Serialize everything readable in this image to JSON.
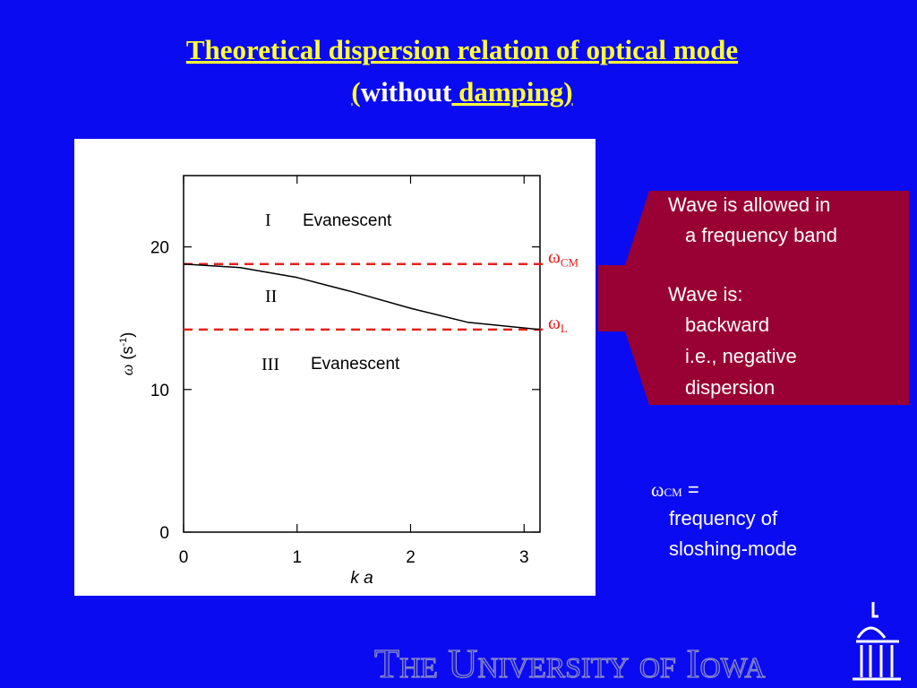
{
  "title": {
    "line1": "Theoretical dispersion relation of optical mode",
    "line2": [
      "(",
      "without",
      " damping)"
    ]
  },
  "chart_data": {
    "type": "line",
    "x": [
      0,
      0.5,
      1,
      1.5,
      2,
      2.5,
      3.14
    ],
    "series": [
      {
        "color": "#000000",
        "values": [
          18.8,
          18.55,
          17.85,
          16.82,
          15.7,
          14.72,
          14.2
        ]
      }
    ],
    "xlim": [
      0,
      3.14
    ],
    "xticks": [
      0,
      1,
      2,
      3
    ],
    "ylim": [
      0,
      25
    ],
    "yticks": [
      0,
      10,
      20
    ],
    "xlabel": "k a",
    "ylabel": [
      "ω",
      " (s",
      "-1",
      ")"
    ],
    "reference_lines": [
      {
        "value": 18.8,
        "symbol": "ω",
        "subscript": "CM",
        "color": "#e8201c"
      },
      {
        "value": 14.2,
        "symbol": "ω",
        "subscript": "L",
        "color": "#e8201c"
      }
    ],
    "annotations": [
      "I",
      "Evanescent",
      "II",
      "III",
      "Evanescent"
    ]
  },
  "callout": {
    "lines": [
      "Wave is allowed in",
      "a frequency band",
      "Wave is:",
      "backward",
      "i.e., negative",
      "dispersion"
    ]
  },
  "note": {
    "symbol": "ω",
    "subscript": "CM",
    "rest": " =",
    "lines": [
      "frequency of",
      "sloshing-mode"
    ]
  },
  "footer": {
    "text": "The University of Iowa"
  }
}
